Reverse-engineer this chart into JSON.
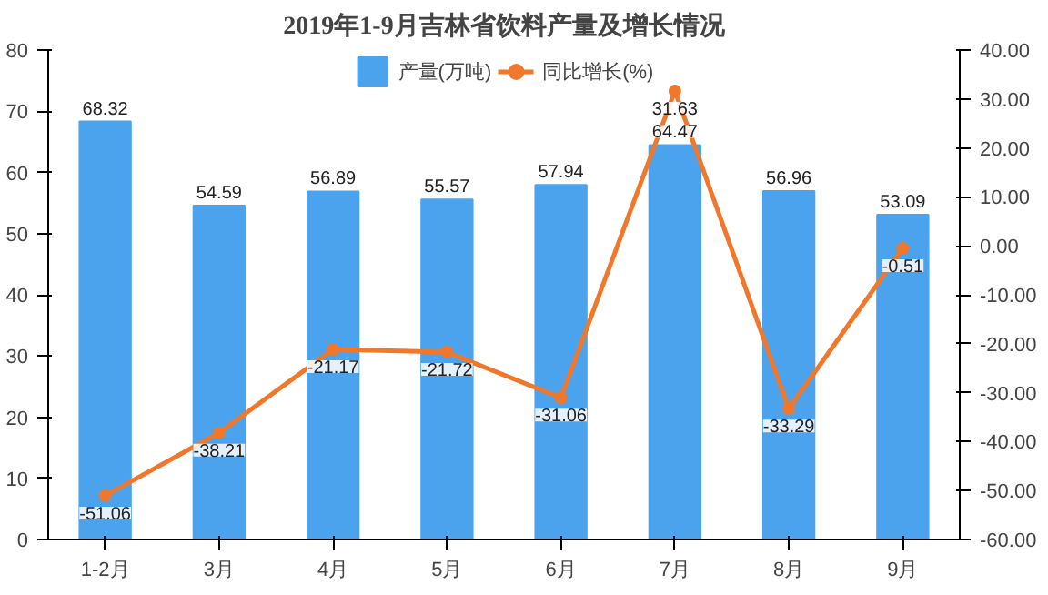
{
  "chart_data": {
    "type": "bar",
    "title": "2019年1-9月吉林省饮料产量及增长情况",
    "categories": [
      "1-2月",
      "3月",
      "4月",
      "5月",
      "6月",
      "7月",
      "8月",
      "9月"
    ],
    "series": [
      {
        "name": "产量(万吨)",
        "color": "#4ba3ee",
        "values": [
          68.32,
          54.59,
          56.89,
          55.57,
          57.94,
          64.47,
          56.96,
          53.09
        ]
      },
      {
        "name": "同比增长(%)",
        "type": "line",
        "axis": "y2",
        "color": "#f0782d",
        "marker": "circle",
        "values": [
          -51.06,
          -38.21,
          -21.17,
          -21.72,
          -31.06,
          31.63,
          -33.29,
          -0.51
        ]
      }
    ],
    "ylim": [
      0,
      80
    ],
    "yticks": [
      0,
      10,
      20,
      30,
      40,
      50,
      60,
      70,
      80
    ],
    "y2lim": [
      -60,
      40
    ],
    "y2ticks": [
      {
        "value": -60,
        "label": "-60.00"
      },
      {
        "value": -50,
        "label": "-50.00"
      },
      {
        "value": -40,
        "label": "-40.00"
      },
      {
        "value": -30,
        "label": "-30.00"
      },
      {
        "value": -20,
        "label": "-20.00"
      },
      {
        "value": -10,
        "label": "-10.00"
      },
      {
        "value": 0,
        "label": "0.00"
      },
      {
        "value": 10,
        "label": "10.00"
      },
      {
        "value": 20,
        "label": "20.00"
      },
      {
        "value": 30,
        "label": "30.00"
      },
      {
        "value": 40,
        "label": "40.00"
      }
    ],
    "grid": false,
    "legend": "top",
    "data_labels": true
  }
}
